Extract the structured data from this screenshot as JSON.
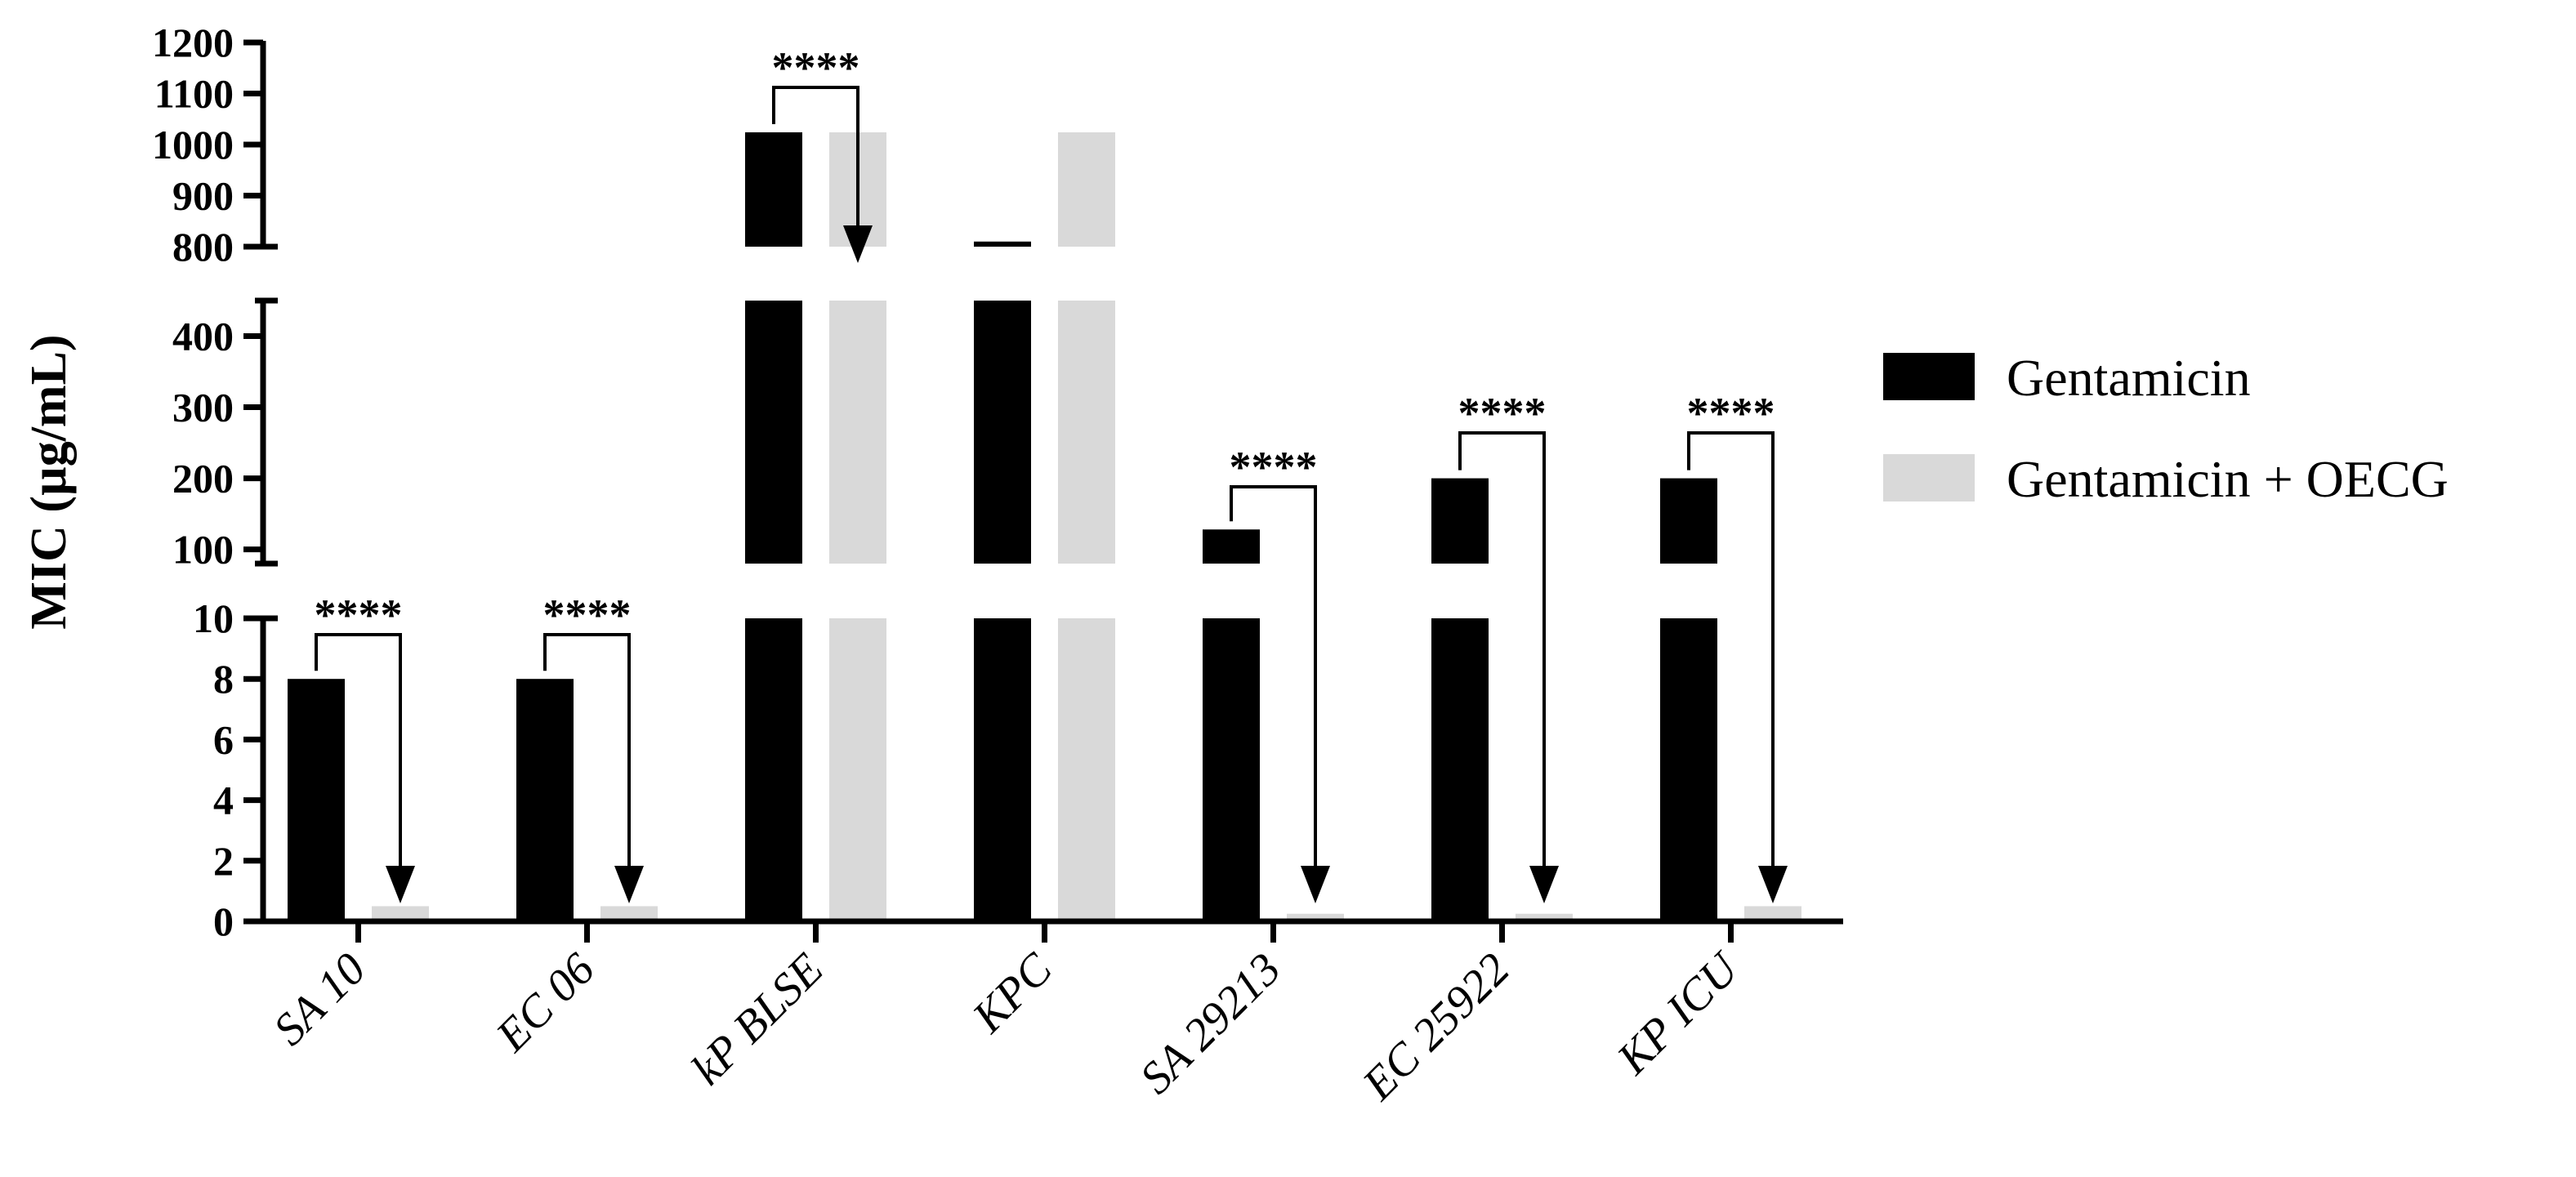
{
  "chart_data": {
    "type": "bar",
    "ylabel": "MIC (µg/mL)",
    "categories": [
      "SA 10",
      "EC 06",
      "kP BLSE",
      "KPC",
      "SA 29213",
      "EC 25922",
      "KP ICU"
    ],
    "series": [
      {
        "name": "Gentamicin",
        "color": "#000000",
        "values": [
          8,
          8,
          1024,
          810,
          128,
          200,
          200
        ]
      },
      {
        "name": "Gentamicin + OECG",
        "color": "#d9d9d9",
        "values": [
          0.5,
          0.5,
          1024,
          1024,
          0.25,
          0.25,
          0.5
        ]
      }
    ],
    "y_axis_segments": [
      {
        "range": [
          0,
          10
        ],
        "ticks": [
          "0",
          "2",
          "4",
          "6",
          "8",
          "10"
        ]
      },
      {
        "range": [
          80,
          450
        ],
        "ticks": [
          "100",
          "200",
          "300",
          "400"
        ]
      },
      {
        "range": [
          800,
          1200
        ],
        "ticks": [
          "800",
          "900",
          "1000",
          "1100",
          "1200"
        ]
      }
    ],
    "axis_break": true,
    "legend_position": "right",
    "significance": [
      {
        "category": "SA 10",
        "label": "****"
      },
      {
        "category": "EC 06",
        "label": "****"
      },
      {
        "category": "kP BLSE",
        "label": "****"
      },
      {
        "category": "SA 29213",
        "label": "****"
      },
      {
        "category": "EC 25922",
        "label": "****"
      },
      {
        "category": "KP ICU",
        "label": "****"
      }
    ]
  }
}
